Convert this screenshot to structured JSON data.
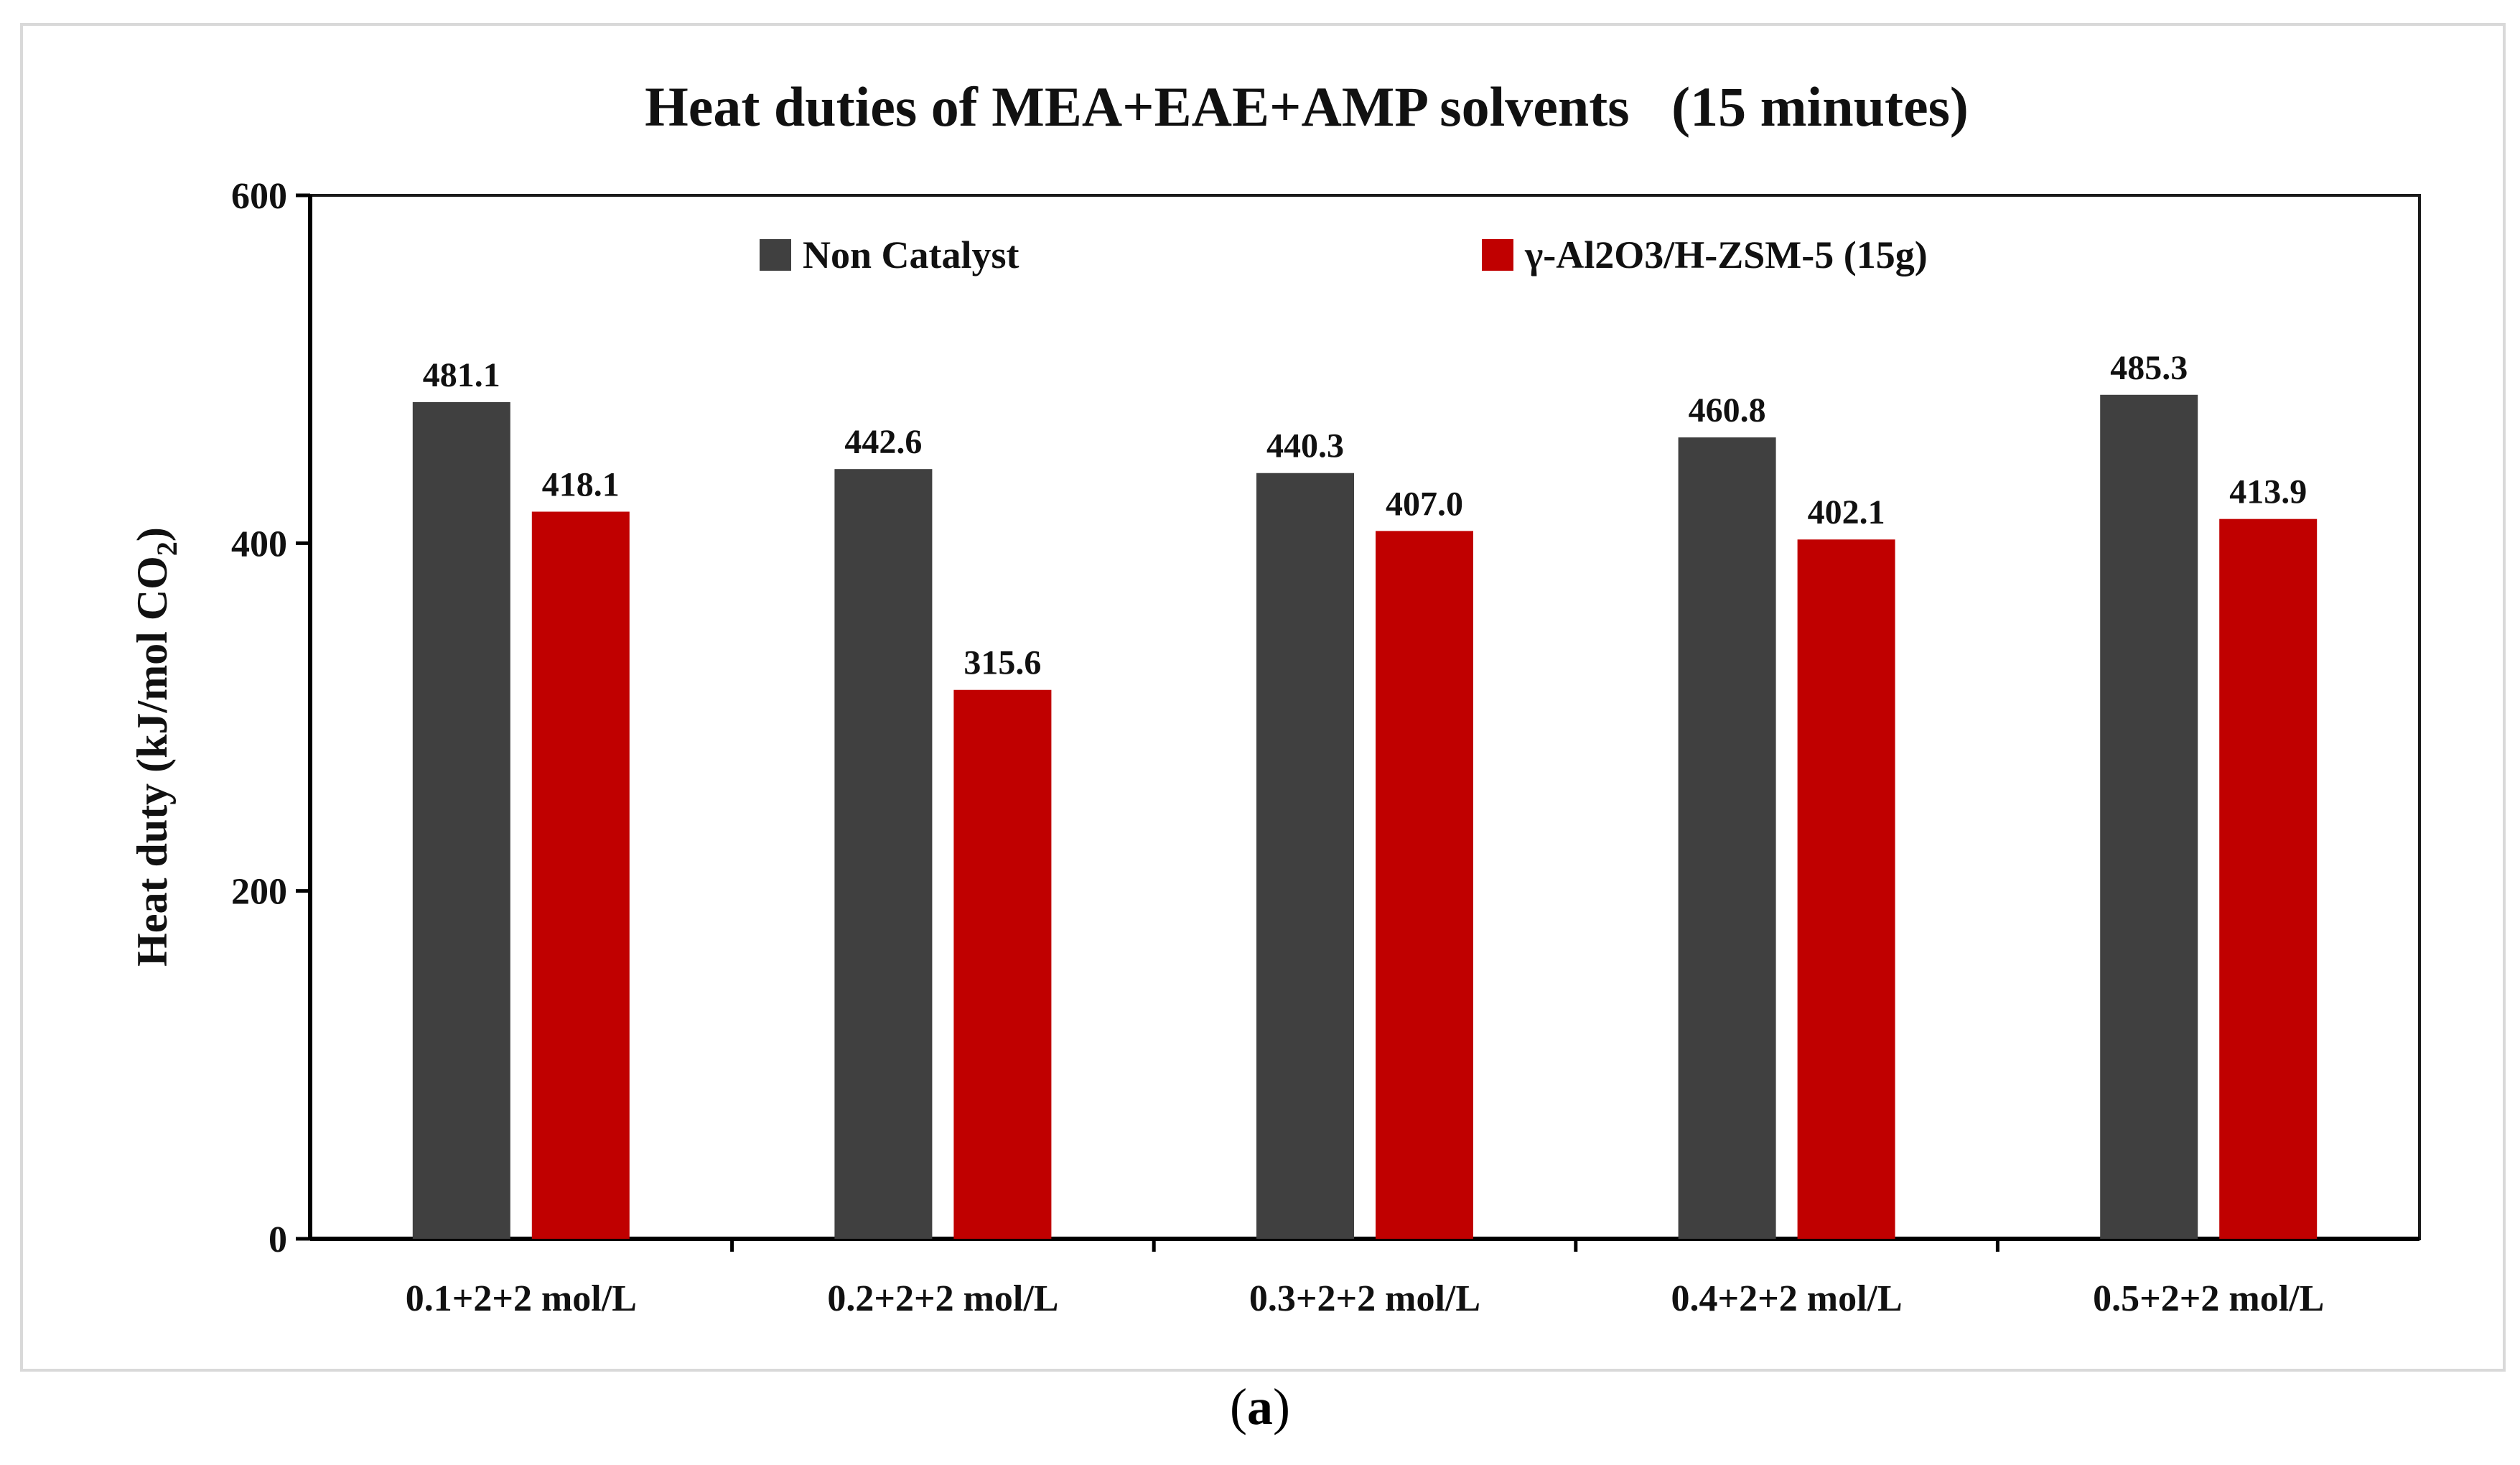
{
  "chart_data": {
    "type": "bar",
    "title": "Heat duties of MEA+EAE+AMP solvents   (15 minutes)",
    "xlabel": "",
    "ylabel": "Heat duty (kJ/mol CO2)",
    "ylabel_main": "Heat duty (kJ/mol CO",
    "ylabel_sub": "2",
    "ylabel_end": ")",
    "ylim": [
      0,
      600
    ],
    "yticks": [
      0,
      200,
      400,
      600
    ],
    "categories": [
      "0.1+2+2 mol/L",
      "0.2+2+2 mol/L",
      "0.3+2+2 mol/L",
      "0.4+2+2 mol/L",
      "0.5+2+2 mol/L"
    ],
    "series": [
      {
        "name": "Non Catalyst",
        "color": "#404040",
        "values": [
          481.1,
          442.6,
          440.3,
          460.8,
          485.3
        ]
      },
      {
        "name": "γ-Al2O3/H-ZSM-5 (15g)",
        "color": "#c00000",
        "values": [
          418.1,
          315.6,
          407.0,
          402.1,
          413.9
        ]
      }
    ],
    "legend_position": "top",
    "grid": false
  },
  "caption": {
    "open": "(",
    "letter": "a",
    "close": ")"
  }
}
